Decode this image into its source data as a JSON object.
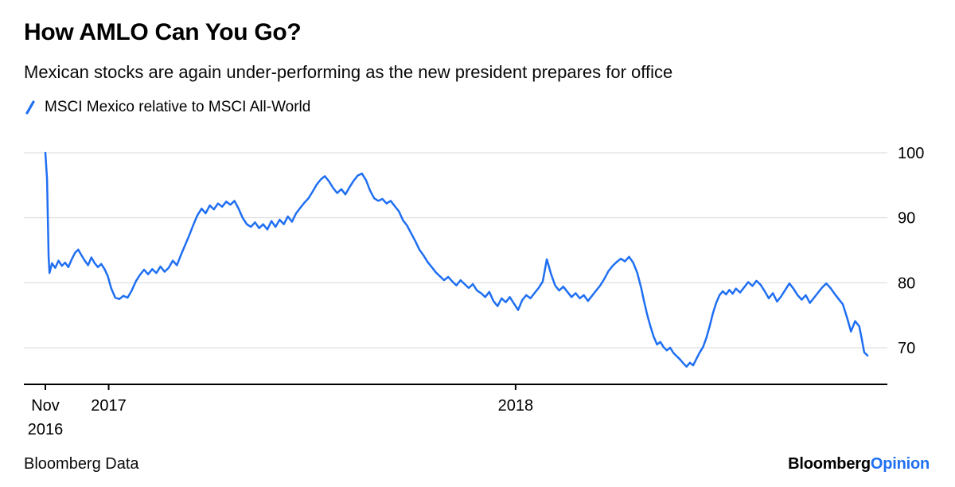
{
  "header": {
    "title": "How AMLO Can You Go?",
    "subtitle": "Mexican stocks are again under-performing as the new president prepares for office"
  },
  "legend": {
    "label": "MSCI Mexico relative to MSCI All-World"
  },
  "footer": {
    "source": "Bloomberg Data",
    "brand_black": "Bloomberg",
    "brand_blue": "Opinion"
  },
  "colors": {
    "line": "#1f6ff2",
    "grid": "#d8d8d8",
    "axis": "#000000",
    "text": "#000000"
  },
  "chart_data": {
    "type": "line",
    "title": "How AMLO Can You Go?",
    "series_name": "MSCI Mexico relative to MSCI All-World",
    "x_range_note": "Nov 2016 to late 2018, x given as fraction of plot width",
    "ylim": [
      64,
      102
    ],
    "yticks": [
      100,
      90,
      80,
      70
    ],
    "grid": "horizontal only",
    "legend_position": "top-left",
    "xticks": [
      {
        "f": 0.0,
        "lines": [
          "Nov",
          "2016"
        ]
      },
      {
        "f": 0.077,
        "lines": [
          "2017"
        ]
      },
      {
        "f": 0.572,
        "lines": [
          "2018"
        ]
      }
    ],
    "points": [
      [
        0,
        100
      ],
      [
        0.002,
        96
      ],
      [
        0.004,
        84
      ],
      [
        0.005,
        81.5
      ],
      [
        0.008,
        83
      ],
      [
        0.012,
        82.3
      ],
      [
        0.016,
        83.4
      ],
      [
        0.02,
        82.6
      ],
      [
        0.024,
        83.1
      ],
      [
        0.028,
        82.4
      ],
      [
        0.032,
        83.6
      ],
      [
        0.036,
        84.6
      ],
      [
        0.04,
        85.1
      ],
      [
        0.044,
        84.2
      ],
      [
        0.048,
        83.4
      ],
      [
        0.052,
        82.7
      ],
      [
        0.056,
        83.9
      ],
      [
        0.06,
        83
      ],
      [
        0.064,
        82.4
      ],
      [
        0.068,
        82.9
      ],
      [
        0.072,
        82.1
      ],
      [
        0.076,
        81
      ],
      [
        0.08,
        79.2
      ],
      [
        0.085,
        77.7
      ],
      [
        0.09,
        77.5
      ],
      [
        0.095,
        78
      ],
      [
        0.1,
        77.7
      ],
      [
        0.105,
        78.8
      ],
      [
        0.11,
        80.2
      ],
      [
        0.115,
        81.2
      ],
      [
        0.12,
        82
      ],
      [
        0.125,
        81.3
      ],
      [
        0.13,
        82.1
      ],
      [
        0.135,
        81.5
      ],
      [
        0.14,
        82.5
      ],
      [
        0.145,
        81.7
      ],
      [
        0.15,
        82.3
      ],
      [
        0.155,
        83.4
      ],
      [
        0.16,
        82.7
      ],
      [
        0.165,
        84.3
      ],
      [
        0.17,
        85.8
      ],
      [
        0.175,
        87.3
      ],
      [
        0.18,
        88.9
      ],
      [
        0.185,
        90.4
      ],
      [
        0.19,
        91.4
      ],
      [
        0.195,
        90.7
      ],
      [
        0.2,
        91.9
      ],
      [
        0.205,
        91.3
      ],
      [
        0.21,
        92.2
      ],
      [
        0.215,
        91.7
      ],
      [
        0.22,
        92.5
      ],
      [
        0.225,
        92
      ],
      [
        0.23,
        92.6
      ],
      [
        0.235,
        91.4
      ],
      [
        0.24,
        90
      ],
      [
        0.245,
        89
      ],
      [
        0.25,
        88.6
      ],
      [
        0.255,
        89.3
      ],
      [
        0.26,
        88.4
      ],
      [
        0.265,
        89
      ],
      [
        0.27,
        88.2
      ],
      [
        0.275,
        89.5
      ],
      [
        0.28,
        88.6
      ],
      [
        0.285,
        89.7
      ],
      [
        0.29,
        89
      ],
      [
        0.295,
        90.2
      ],
      [
        0.3,
        89.4
      ],
      [
        0.305,
        90.7
      ],
      [
        0.31,
        91.5
      ],
      [
        0.315,
        92.3
      ],
      [
        0.32,
        93
      ],
      [
        0.325,
        94
      ],
      [
        0.33,
        95.1
      ],
      [
        0.335,
        95.9
      ],
      [
        0.34,
        96.4
      ],
      [
        0.345,
        95.6
      ],
      [
        0.35,
        94.6
      ],
      [
        0.355,
        93.8
      ],
      [
        0.36,
        94.4
      ],
      [
        0.365,
        93.6
      ],
      [
        0.37,
        94.7
      ],
      [
        0.375,
        95.7
      ],
      [
        0.38,
        96.5
      ],
      [
        0.385,
        96.8
      ],
      [
        0.39,
        95.8
      ],
      [
        0.395,
        94.2
      ],
      [
        0.4,
        93
      ],
      [
        0.405,
        92.6
      ],
      [
        0.41,
        92.9
      ],
      [
        0.415,
        92.2
      ],
      [
        0.42,
        92.6
      ],
      [
        0.425,
        91.8
      ],
      [
        0.43,
        91
      ],
      [
        0.435,
        89.6
      ],
      [
        0.44,
        88.8
      ],
      [
        0.445,
        87.6
      ],
      [
        0.45,
        86.4
      ],
      [
        0.455,
        85.1
      ],
      [
        0.46,
        84.2
      ],
      [
        0.465,
        83.2
      ],
      [
        0.47,
        82.4
      ],
      [
        0.475,
        81.6
      ],
      [
        0.48,
        81
      ],
      [
        0.485,
        80.4
      ],
      [
        0.49,
        80.9
      ],
      [
        0.495,
        80.2
      ],
      [
        0.5,
        79.6
      ],
      [
        0.505,
        80.4
      ],
      [
        0.51,
        79.8
      ],
      [
        0.515,
        79.2
      ],
      [
        0.52,
        79.8
      ],
      [
        0.525,
        78.8
      ],
      [
        0.53,
        78.4
      ],
      [
        0.535,
        77.8
      ],
      [
        0.54,
        78.6
      ],
      [
        0.545,
        77.2
      ],
      [
        0.55,
        76.4
      ],
      [
        0.555,
        77.6
      ],
      [
        0.56,
        77
      ],
      [
        0.565,
        77.8
      ],
      [
        0.57,
        76.8
      ],
      [
        0.575,
        75.8
      ],
      [
        0.58,
        77.3
      ],
      [
        0.585,
        78.1
      ],
      [
        0.59,
        77.6
      ],
      [
        0.595,
        78.4
      ],
      [
        0.6,
        79.2
      ],
      [
        0.605,
        80.2
      ],
      [
        0.61,
        83.6
      ],
      [
        0.615,
        81.4
      ],
      [
        0.62,
        79.6
      ],
      [
        0.625,
        78.8
      ],
      [
        0.63,
        79.4
      ],
      [
        0.635,
        78.6
      ],
      [
        0.64,
        77.8
      ],
      [
        0.645,
        78.4
      ],
      [
        0.65,
        77.6
      ],
      [
        0.655,
        78.1
      ],
      [
        0.66,
        77.2
      ],
      [
        0.665,
        78
      ],
      [
        0.67,
        78.8
      ],
      [
        0.675,
        79.6
      ],
      [
        0.68,
        80.6
      ],
      [
        0.685,
        81.8
      ],
      [
        0.69,
        82.6
      ],
      [
        0.695,
        83.2
      ],
      [
        0.7,
        83.7
      ],
      [
        0.705,
        83.3
      ],
      [
        0.71,
        84
      ],
      [
        0.715,
        83.1
      ],
      [
        0.72,
        81.5
      ],
      [
        0.725,
        79.1
      ],
      [
        0.728,
        77.3
      ],
      [
        0.732,
        75.1
      ],
      [
        0.736,
        73.3
      ],
      [
        0.74,
        71.7
      ],
      [
        0.744,
        70.5
      ],
      [
        0.748,
        70.9
      ],
      [
        0.752,
        70.1
      ],
      [
        0.756,
        69.6
      ],
      [
        0.76,
        70
      ],
      [
        0.764,
        69.2
      ],
      [
        0.768,
        68.7
      ],
      [
        0.772,
        68.2
      ],
      [
        0.776,
        67.6
      ],
      [
        0.78,
        67.1
      ],
      [
        0.784,
        67.7
      ],
      [
        0.788,
        67.3
      ],
      [
        0.792,
        68.3
      ],
      [
        0.796,
        69.3
      ],
      [
        0.8,
        70.1
      ],
      [
        0.804,
        71.5
      ],
      [
        0.808,
        73.3
      ],
      [
        0.812,
        75.3
      ],
      [
        0.816,
        76.9
      ],
      [
        0.82,
        78.1
      ],
      [
        0.824,
        78.7
      ],
      [
        0.828,
        78.2
      ],
      [
        0.832,
        78.9
      ],
      [
        0.836,
        78.3
      ],
      [
        0.84,
        79.1
      ],
      [
        0.845,
        78.5
      ],
      [
        0.85,
        79.3
      ],
      [
        0.855,
        80.1
      ],
      [
        0.86,
        79.5
      ],
      [
        0.865,
        80.3
      ],
      [
        0.87,
        79.7
      ],
      [
        0.875,
        78.7
      ],
      [
        0.88,
        77.6
      ],
      [
        0.885,
        78.4
      ],
      [
        0.89,
        77.1
      ],
      [
        0.895,
        77.9
      ],
      [
        0.9,
        78.9
      ],
      [
        0.905,
        79.9
      ],
      [
        0.91,
        79.1
      ],
      [
        0.915,
        78.1
      ],
      [
        0.92,
        77.4
      ],
      [
        0.925,
        78.1
      ],
      [
        0.93,
        76.9
      ],
      [
        0.935,
        77.7
      ],
      [
        0.94,
        78.5
      ],
      [
        0.945,
        79.3
      ],
      [
        0.95,
        79.9
      ],
      [
        0.955,
        79.2
      ],
      [
        0.96,
        78.3
      ],
      [
        0.965,
        77.5
      ],
      [
        0.97,
        76.7
      ],
      [
        0.975,
        74.7
      ],
      [
        0.98,
        72.5
      ],
      [
        0.985,
        74.1
      ],
      [
        0.99,
        73.3
      ],
      [
        0.993,
        71.4
      ],
      [
        0.996,
        69.3
      ],
      [
        1,
        68.8
      ]
    ]
  }
}
